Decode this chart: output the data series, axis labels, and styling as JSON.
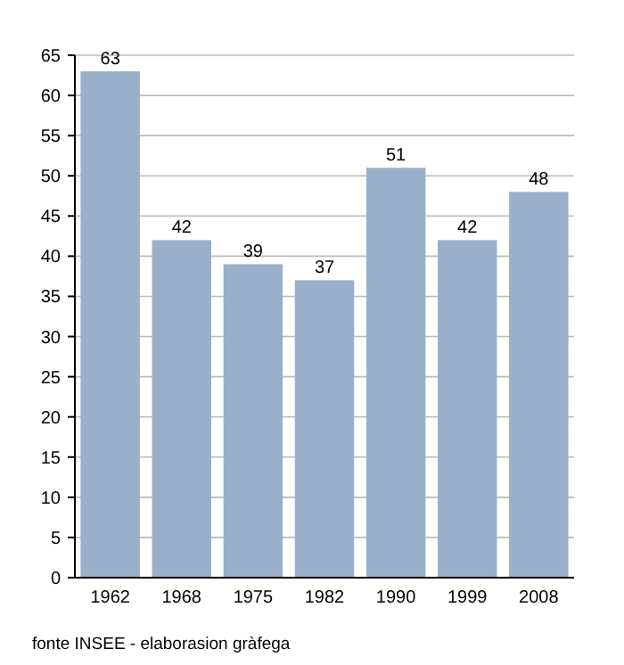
{
  "chart_data": {
    "type": "bar",
    "categories": [
      "1962",
      "1968",
      "1975",
      "1982",
      "1990",
      "1999",
      "2008"
    ],
    "values": [
      63,
      42,
      39,
      37,
      51,
      42,
      48
    ],
    "color": "#9ab0ca",
    "ylim": [
      0,
      65
    ],
    "yticks": [
      0,
      5,
      10,
      15,
      20,
      25,
      30,
      35,
      40,
      45,
      50,
      55,
      60,
      65
    ],
    "grid": "y",
    "data_labels": true,
    "annotations": [
      "fonte INSEE - elaborasion gràfega"
    ]
  }
}
